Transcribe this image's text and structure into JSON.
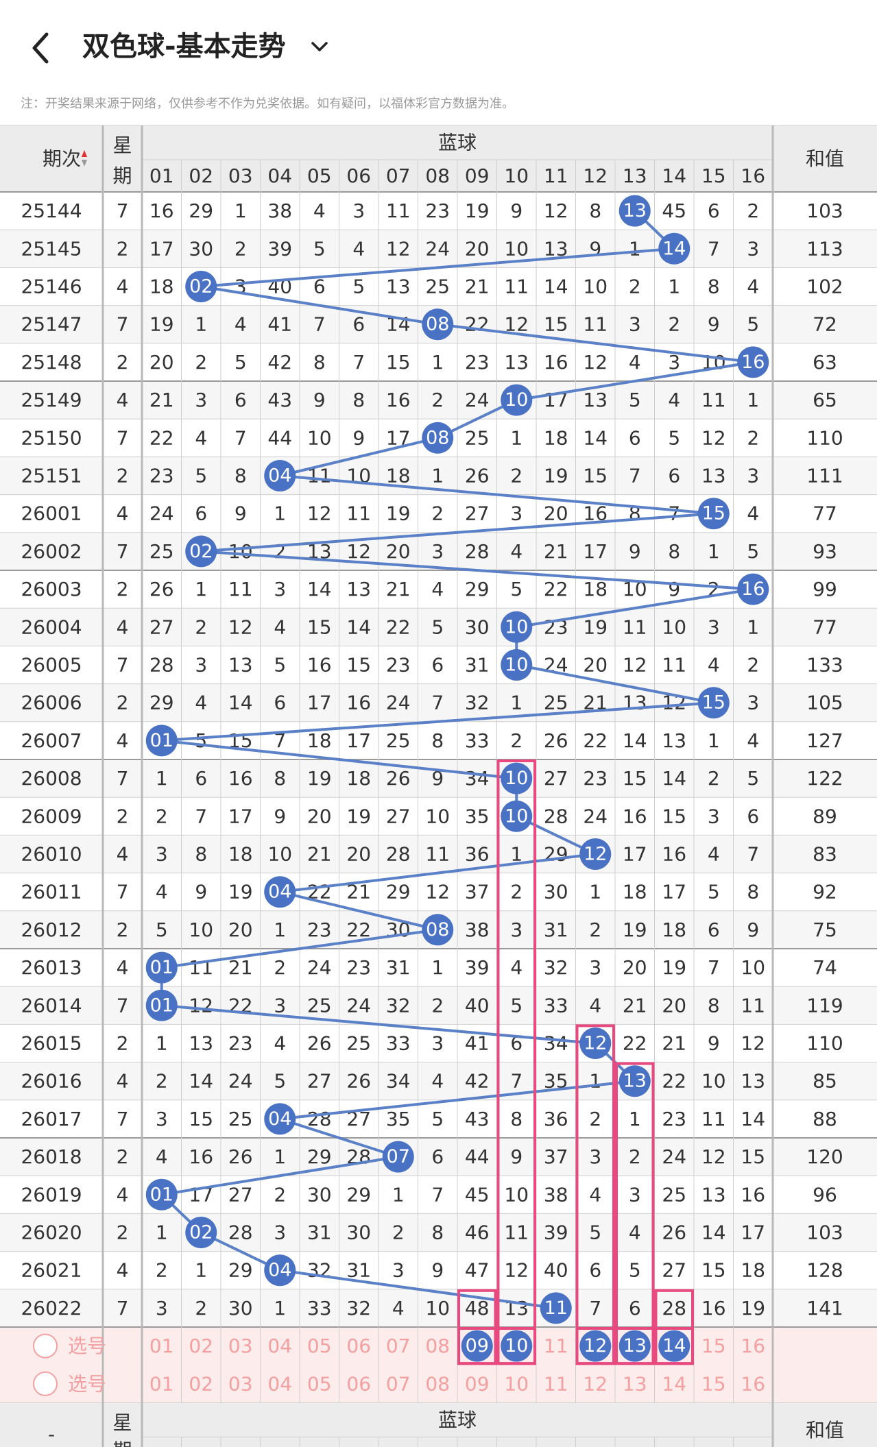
{
  "header": {
    "title": "双色球-基本走势",
    "notice": "注：开奖结果来源于网络，仅供参考不作为兑奖依据。如有疑问，以福体彩官方数据为准。"
  },
  "table": {
    "col_issue": "期次",
    "col_week": "星期",
    "col_group": "蓝球",
    "col_sum": "和值",
    "numbers": [
      "01",
      "02",
      "03",
      "04",
      "05",
      "06",
      "07",
      "08",
      "09",
      "10",
      "11",
      "12",
      "13",
      "14",
      "15",
      "16"
    ],
    "rows": [
      {
        "issue": "25144",
        "week": "7",
        "cells": [
          16,
          29,
          1,
          38,
          4,
          3,
          11,
          23,
          19,
          9,
          12,
          8,
          13,
          45,
          6,
          2
        ],
        "blue": 13,
        "sum": "103"
      },
      {
        "issue": "25145",
        "week": "2",
        "cells": [
          17,
          30,
          2,
          39,
          5,
          4,
          12,
          24,
          20,
          10,
          13,
          9,
          1,
          14,
          7,
          3
        ],
        "blue": 14,
        "sum": "113"
      },
      {
        "issue": "25146",
        "week": "4",
        "cells": [
          18,
          2,
          3,
          40,
          6,
          5,
          13,
          25,
          21,
          11,
          14,
          10,
          2,
          1,
          8,
          4
        ],
        "blue": 2,
        "sum": "102"
      },
      {
        "issue": "25147",
        "week": "7",
        "cells": [
          19,
          1,
          4,
          41,
          7,
          6,
          14,
          8,
          22,
          12,
          15,
          11,
          3,
          2,
          9,
          5
        ],
        "blue": 8,
        "sum": "72"
      },
      {
        "issue": "25148",
        "week": "2",
        "cells": [
          20,
          2,
          5,
          42,
          8,
          7,
          15,
          1,
          23,
          13,
          16,
          12,
          4,
          3,
          10,
          16
        ],
        "blue": 16,
        "sum": "63"
      },
      {
        "issue": "25149",
        "week": "4",
        "cells": [
          21,
          3,
          6,
          43,
          9,
          8,
          16,
          2,
          24,
          10,
          17,
          13,
          5,
          4,
          11,
          1
        ],
        "blue": 10,
        "sum": "65"
      },
      {
        "issue": "25150",
        "week": "7",
        "cells": [
          22,
          4,
          7,
          44,
          10,
          9,
          17,
          8,
          25,
          1,
          18,
          14,
          6,
          5,
          12,
          2
        ],
        "blue": 8,
        "sum": "110"
      },
      {
        "issue": "25151",
        "week": "2",
        "cells": [
          23,
          5,
          8,
          4,
          11,
          10,
          18,
          1,
          26,
          2,
          19,
          15,
          7,
          6,
          13,
          3
        ],
        "blue": 4,
        "sum": "111"
      },
      {
        "issue": "26001",
        "week": "4",
        "cells": [
          24,
          6,
          9,
          1,
          12,
          11,
          19,
          2,
          27,
          3,
          20,
          16,
          8,
          7,
          15,
          4
        ],
        "blue": 15,
        "sum": "77"
      },
      {
        "issue": "26002",
        "week": "7",
        "cells": [
          25,
          2,
          10,
          2,
          13,
          12,
          20,
          3,
          28,
          4,
          21,
          17,
          9,
          8,
          1,
          5
        ],
        "blue": 2,
        "sum": "93"
      },
      {
        "issue": "26003",
        "week": "2",
        "cells": [
          26,
          1,
          11,
          3,
          14,
          13,
          21,
          4,
          29,
          5,
          22,
          18,
          10,
          9,
          2,
          16
        ],
        "blue": 16,
        "sum": "99"
      },
      {
        "issue": "26004",
        "week": "4",
        "cells": [
          27,
          2,
          12,
          4,
          15,
          14,
          22,
          5,
          30,
          10,
          23,
          19,
          11,
          10,
          3,
          1
        ],
        "blue": 10,
        "sum": "77"
      },
      {
        "issue": "26005",
        "week": "7",
        "cells": [
          28,
          3,
          13,
          5,
          16,
          15,
          23,
          6,
          31,
          10,
          24,
          20,
          12,
          11,
          4,
          2
        ],
        "blue": 10,
        "sum": "133"
      },
      {
        "issue": "26006",
        "week": "2",
        "cells": [
          29,
          4,
          14,
          6,
          17,
          16,
          24,
          7,
          32,
          1,
          25,
          21,
          13,
          12,
          15,
          3
        ],
        "blue": 15,
        "sum": "105"
      },
      {
        "issue": "26007",
        "week": "4",
        "cells": [
          1,
          5,
          15,
          7,
          18,
          17,
          25,
          8,
          33,
          2,
          26,
          22,
          14,
          13,
          1,
          4
        ],
        "blue": 1,
        "sum": "127"
      },
      {
        "issue": "26008",
        "week": "7",
        "cells": [
          1,
          6,
          16,
          8,
          19,
          18,
          26,
          9,
          34,
          10,
          27,
          23,
          15,
          14,
          2,
          5
        ],
        "blue": 10,
        "sum": "122"
      },
      {
        "issue": "26009",
        "week": "2",
        "cells": [
          2,
          7,
          17,
          9,
          20,
          19,
          27,
          10,
          35,
          10,
          28,
          24,
          16,
          15,
          3,
          6
        ],
        "blue": 10,
        "sum": "89"
      },
      {
        "issue": "26010",
        "week": "4",
        "cells": [
          3,
          8,
          18,
          10,
          21,
          20,
          28,
          11,
          36,
          1,
          29,
          12,
          17,
          16,
          4,
          7
        ],
        "blue": 12,
        "sum": "83"
      },
      {
        "issue": "26011",
        "week": "7",
        "cells": [
          4,
          9,
          19,
          4,
          22,
          21,
          29,
          12,
          37,
          2,
          30,
          1,
          18,
          17,
          5,
          8
        ],
        "blue": 4,
        "sum": "92"
      },
      {
        "issue": "26012",
        "week": "2",
        "cells": [
          5,
          10,
          20,
          1,
          23,
          22,
          30,
          8,
          38,
          3,
          31,
          2,
          19,
          18,
          6,
          9
        ],
        "blue": 8,
        "sum": "75"
      },
      {
        "issue": "26013",
        "week": "4",
        "cells": [
          1,
          11,
          21,
          2,
          24,
          23,
          31,
          1,
          39,
          4,
          32,
          3,
          20,
          19,
          7,
          10
        ],
        "blue": 1,
        "sum": "74"
      },
      {
        "issue": "26014",
        "week": "7",
        "cells": [
          1,
          12,
          22,
          3,
          25,
          24,
          32,
          2,
          40,
          5,
          33,
          4,
          21,
          20,
          8,
          11
        ],
        "blue": 1,
        "sum": "119"
      },
      {
        "issue": "26015",
        "week": "2",
        "cells": [
          1,
          13,
          23,
          4,
          26,
          25,
          33,
          3,
          41,
          6,
          34,
          12,
          22,
          21,
          9,
          12
        ],
        "blue": 12,
        "sum": "110"
      },
      {
        "issue": "26016",
        "week": "4",
        "cells": [
          2,
          14,
          24,
          5,
          27,
          26,
          34,
          4,
          42,
          7,
          35,
          1,
          13,
          22,
          10,
          13
        ],
        "blue": 13,
        "sum": "85"
      },
      {
        "issue": "26017",
        "week": "7",
        "cells": [
          3,
          15,
          25,
          4,
          28,
          27,
          35,
          5,
          43,
          8,
          36,
          2,
          1,
          23,
          11,
          14
        ],
        "blue": 4,
        "sum": "88"
      },
      {
        "issue": "26018",
        "week": "2",
        "cells": [
          4,
          16,
          26,
          1,
          29,
          28,
          7,
          6,
          44,
          9,
          37,
          3,
          2,
          24,
          12,
          15
        ],
        "blue": 7,
        "sum": "120"
      },
      {
        "issue": "26019",
        "week": "4",
        "cells": [
          1,
          17,
          27,
          2,
          30,
          29,
          1,
          7,
          45,
          10,
          38,
          4,
          3,
          25,
          13,
          16
        ],
        "blue": 1,
        "sum": "96"
      },
      {
        "issue": "26020",
        "week": "2",
        "cells": [
          1,
          2,
          28,
          3,
          31,
          30,
          2,
          8,
          46,
          11,
          39,
          5,
          4,
          26,
          14,
          17
        ],
        "blue": 2,
        "sum": "103"
      },
      {
        "issue": "26021",
        "week": "4",
        "cells": [
          2,
          1,
          29,
          4,
          32,
          31,
          3,
          9,
          47,
          12,
          40,
          6,
          5,
          27,
          15,
          18
        ],
        "blue": 4,
        "sum": "128"
      },
      {
        "issue": "26022",
        "week": "7",
        "cells": [
          3,
          2,
          30,
          1,
          33,
          32,
          4,
          10,
          48,
          13,
          11,
          7,
          6,
          28,
          16,
          19
        ],
        "blue": 11,
        "sum": "141"
      }
    ],
    "pick_rows": [
      {
        "label": "选号",
        "selected": [
          9,
          10,
          12,
          13,
          14
        ]
      },
      {
        "label": "选号",
        "selected": []
      }
    ],
    "footer": {
      "issue": "-",
      "week": "星期",
      "group": "蓝球",
      "sum": "和值"
    }
  },
  "colors": {
    "ball": "#4a72c4",
    "line": "#5a80c8",
    "highlight": "#e84a7f",
    "pick_bg": "#fdecec",
    "pick_text": "#f5a0a0",
    "header_bg": "#ececec",
    "border": "#cfcfcf"
  }
}
